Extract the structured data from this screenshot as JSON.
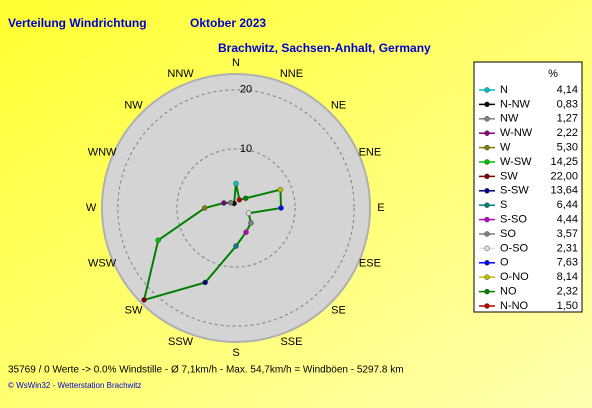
{
  "chart_data": {
    "type": "radar",
    "title": "Verteilung Windrichtung",
    "period": "Oktober 2023",
    "location": "Brachwitz, Sachsen-Anhalt, Germany",
    "unit": "%",
    "categories": [
      "N",
      "NNE",
      "NE",
      "ENE",
      "E",
      "ESE",
      "SE",
      "SSE",
      "S",
      "SSW",
      "SW",
      "WSW",
      "W",
      "WNW",
      "NW",
      "NNW"
    ],
    "values": [
      4.14,
      1.5,
      2.32,
      8.14,
      7.63,
      2.31,
      3.57,
      4.44,
      6.44,
      13.64,
      22.0,
      14.25,
      5.3,
      2.22,
      1.27,
      0.83
    ],
    "value_labels": [
      "4,14",
      "1,50",
      "2,32",
      "8,14",
      "7,63",
      "2,31",
      "3,57",
      "4,44",
      "6,44",
      "13,64",
      "22,00",
      "14,25",
      "5,30",
      "2,22",
      "1,27",
      "0,83"
    ],
    "color": "#008000",
    "rlim": [
      0,
      22
    ],
    "rticks": [
      10,
      20
    ],
    "legend": [
      {
        "name": "N",
        "color": "#00c0c0"
      },
      {
        "name": "N-NW",
        "color": "#000000"
      },
      {
        "name": "NW",
        "color": "#808080"
      },
      {
        "name": "W-NW",
        "color": "#800080"
      },
      {
        "name": "W",
        "color": "#808000"
      },
      {
        "name": "W-SW",
        "color": "#00c000"
      },
      {
        "name": "SW",
        "color": "#800000"
      },
      {
        "name": "S-SW",
        "color": "#000080"
      },
      {
        "name": "S",
        "color": "#008080"
      },
      {
        "name": "S-SO",
        "color": "#c000c0"
      },
      {
        "name": "SO",
        "color": "#808080"
      },
      {
        "name": "O-SO",
        "color": "#e0e0e0"
      },
      {
        "name": "O",
        "color": "#0000ff"
      },
      {
        "name": "O-NO",
        "color": "#c0c000"
      },
      {
        "name": "NO",
        "color": "#008000"
      },
      {
        "name": "N-NO",
        "color": "#c00000"
      }
    ],
    "footer": "35769 / 0 Werte  -> 0.0% Windstille   -   Ø 7,1km/h   -   Max. 54,7km/h = Windböen   -   5297.8 km",
    "credit": "© WsWin32  -  Wetterstation Brachwitz"
  }
}
